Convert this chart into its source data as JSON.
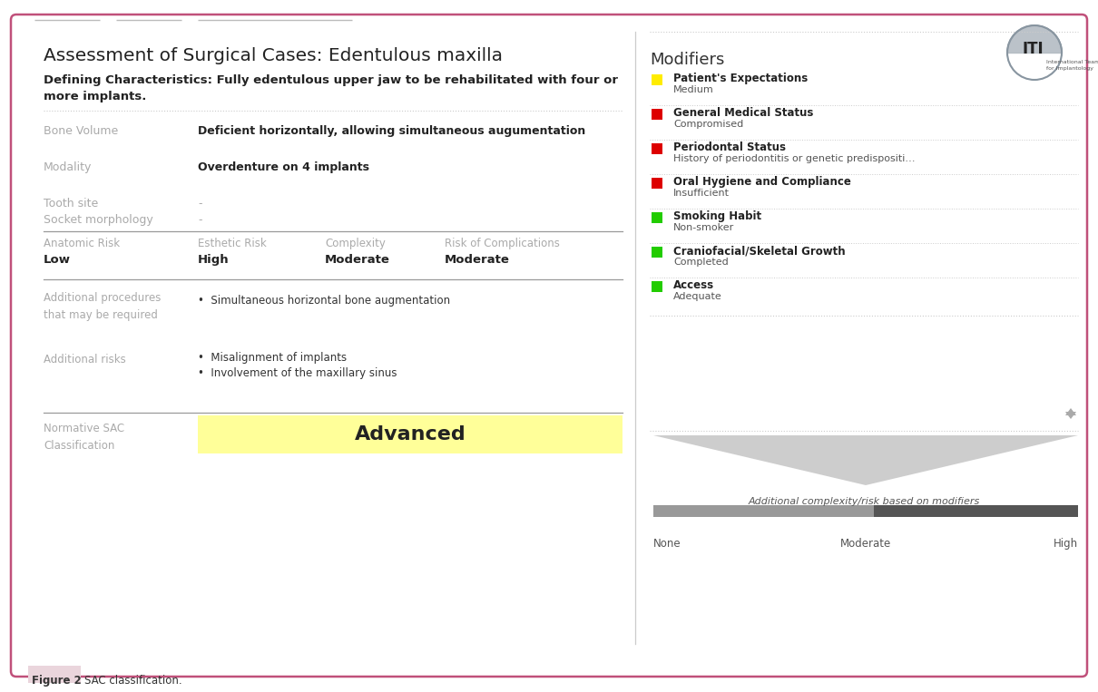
{
  "title": "Assessment of Surgical Cases: Edentulous maxilla",
  "defining_char_bold": "Defining Characteristics: Fully edentulous upper jaw to be rehabilitated with four or\nmore implants.",
  "fields": [
    {
      "label": "Bone Volume",
      "value": "Deficient horizontally, allowing simultaneous augumentation",
      "bold": true
    },
    {
      "label": "Modality",
      "value": "Overdenture on 4 implants",
      "bold": true
    },
    {
      "label": "Tooth site",
      "value": "-",
      "bold": false
    },
    {
      "label": "Socket morphology",
      "value": "-",
      "bold": false
    }
  ],
  "risk_headers": [
    "Anatomic Risk",
    "Esthetic Risk",
    "Complexity",
    "Risk of Complications"
  ],
  "risk_values": [
    "Low",
    "High",
    "Moderate",
    "Moderate"
  ],
  "additional_procedures_label": "Additional procedures\nthat may be required",
  "additional_procedures": [
    "Simultaneous horizontal bone augmentation"
  ],
  "additional_risks_label": "Additional risks",
  "additional_risks": [
    "Misalignment of implants",
    "Involvement of the maxillary sinus"
  ],
  "normative_label": "Normative SAC\nClassification",
  "normative_value": "Advanced",
  "normative_color": "#FFFF99",
  "modifiers_title": "Modifiers",
  "modifiers": [
    {
      "color": "#FFEC00",
      "name": "Patient's Expectations",
      "value": "Medium"
    },
    {
      "color": "#DD0000",
      "name": "General Medical Status",
      "value": "Compromised"
    },
    {
      "color": "#DD0000",
      "name": "Periodontal Status",
      "value": "History of periodontitis or genetic predispositi…"
    },
    {
      "color": "#DD0000",
      "name": "Oral Hygiene and Compliance",
      "value": "Insufficient"
    },
    {
      "color": "#22CC00",
      "name": "Smoking Habit",
      "value": "Non-smoker"
    },
    {
      "color": "#22CC00",
      "name": "Craniofacial/Skeletal Growth",
      "value": "Completed"
    },
    {
      "color": "#22CC00",
      "name": "Access",
      "value": "Adequate"
    }
  ],
  "complexity_label": "Additional complexity/risk based on modifiers",
  "bar_labels": [
    "None",
    "Moderate",
    "High"
  ],
  "figure_label": "Figure 2",
  "figure_caption": "SAC classification.",
  "border_color": "#C0507A",
  "background_color": "#FFFFFF",
  "label_color": "#AAAAAA",
  "faded_label_color": "#BBBBBB",
  "text_color": "#333333",
  "dotted_color": "#CCCCCC",
  "sep_color": "#999999"
}
